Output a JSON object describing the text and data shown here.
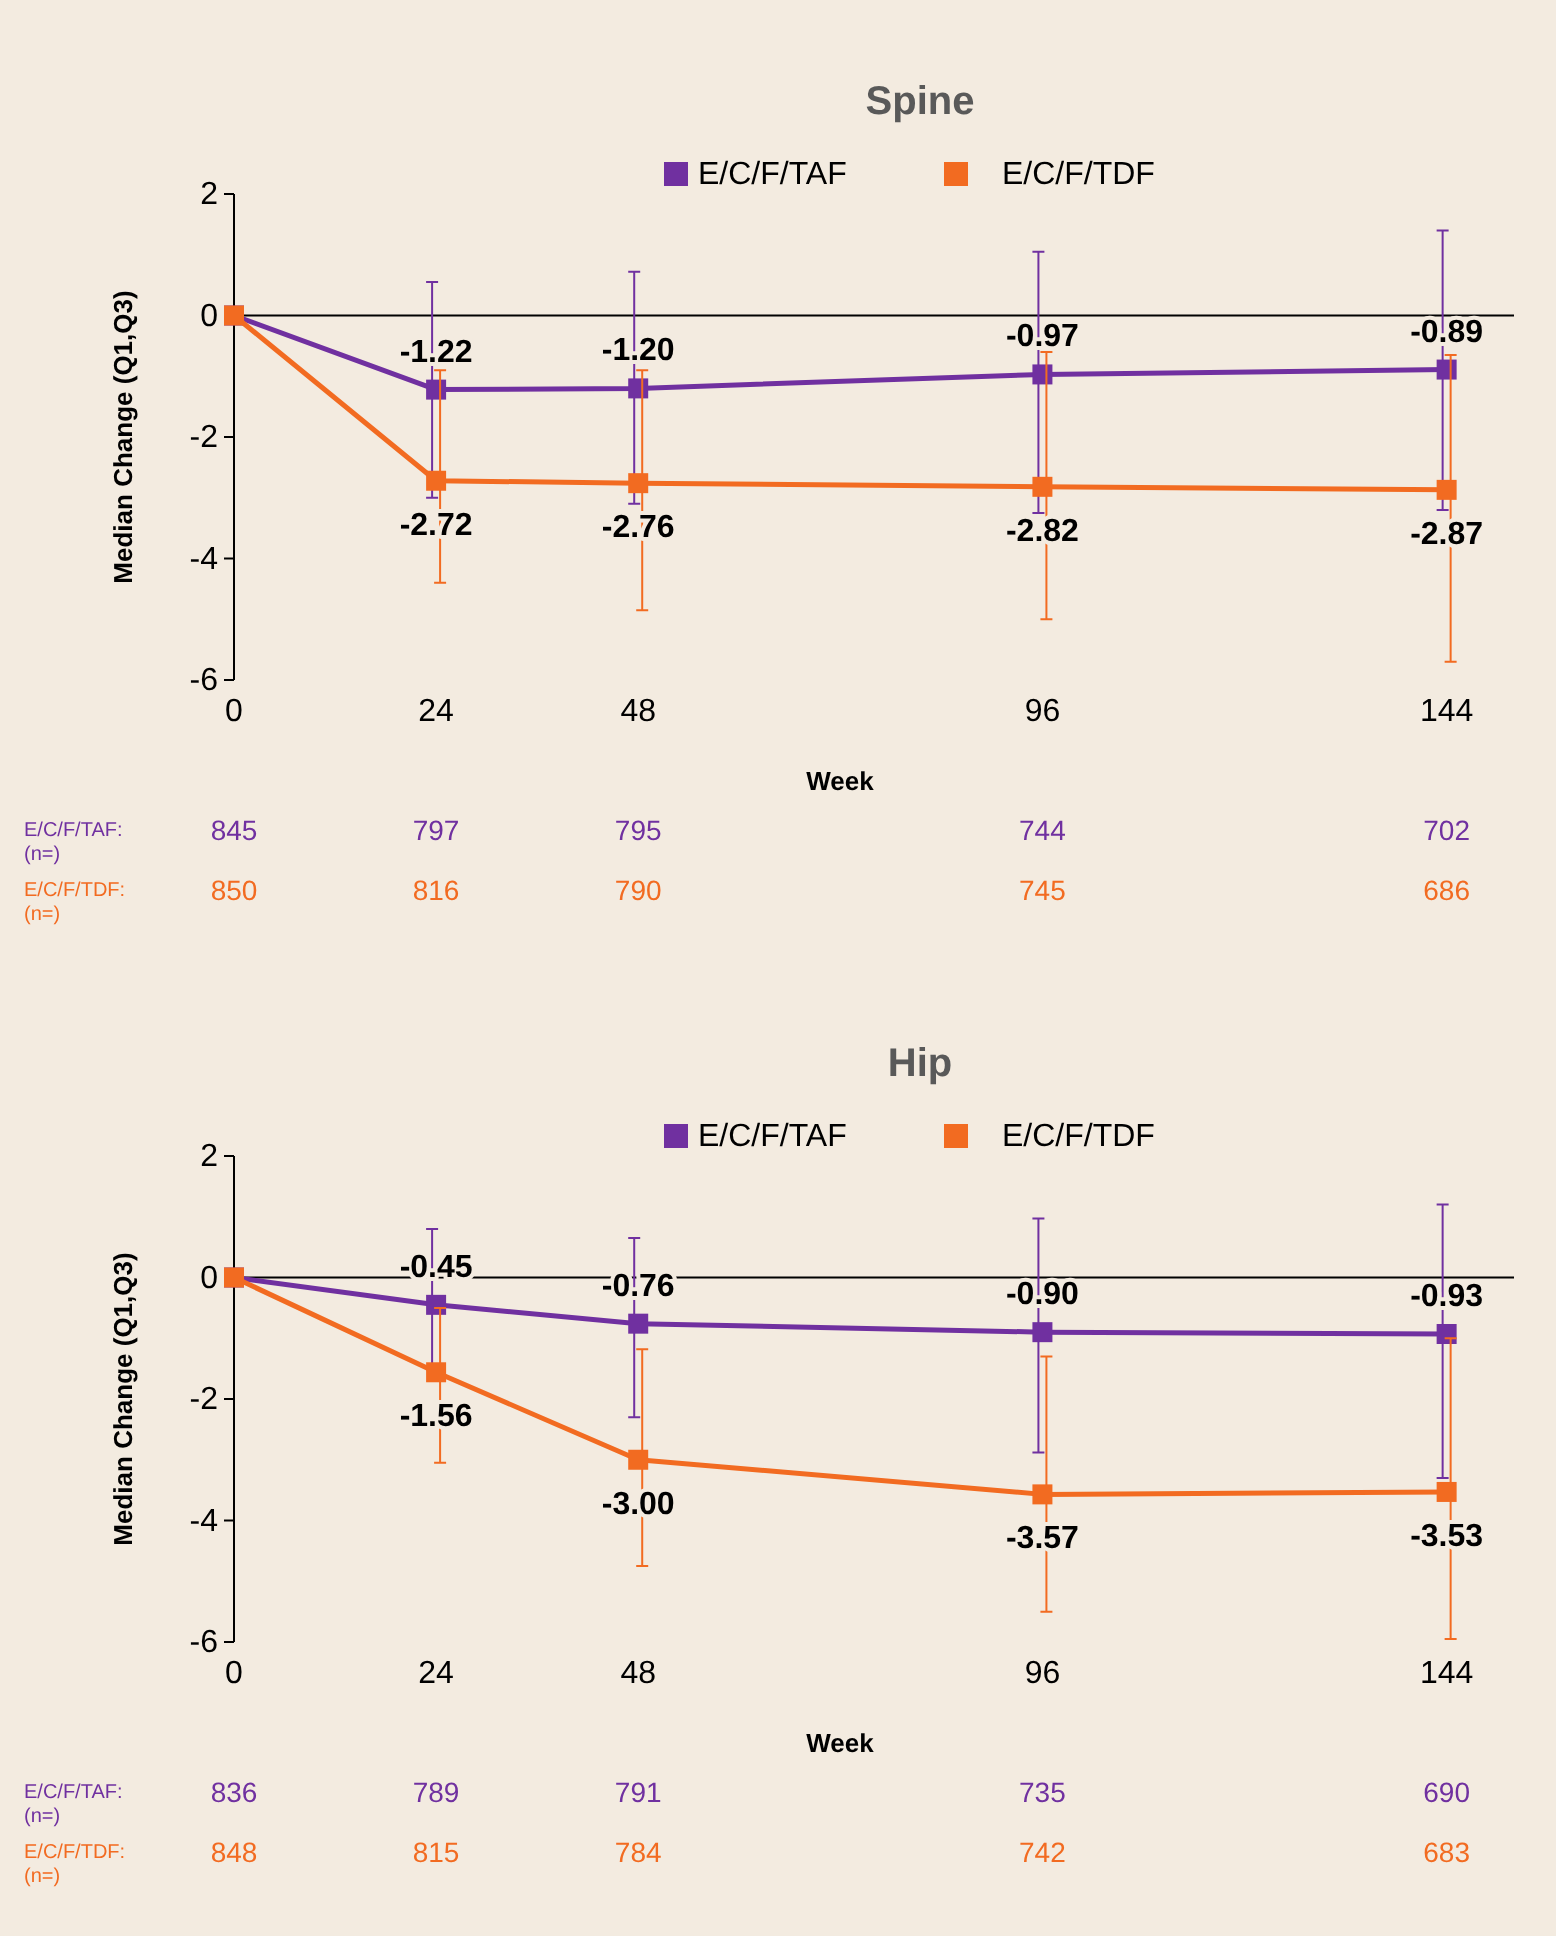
{
  "chart_data": [
    {
      "type": "line",
      "title": "Spine",
      "xlabel": "Week",
      "ylabel": "Median Change (Q1,Q3)",
      "x": [
        0,
        24,
        48,
        96,
        144
      ],
      "xlim": [
        0,
        152
      ],
      "xticks": [
        0,
        24,
        48,
        96,
        144
      ],
      "ylim": [
        -6,
        2
      ],
      "yticks": [
        -6,
        -4,
        -2,
        0,
        2
      ],
      "grid": false,
      "legend": "top",
      "marker": "square",
      "line_style": "solid",
      "ref_lines": [
        {
          "axis": "y",
          "value": 0,
          "color": "#000000"
        }
      ],
      "series": [
        {
          "name": "E/C/F/TAF",
          "color": "#7030a0",
          "values": [
            0,
            -1.22,
            -1.2,
            -0.97,
            -0.89
          ],
          "value_labels": [
            null,
            "-1.22",
            "-1.20",
            "-0.97",
            "-0.89"
          ],
          "errors": [
            null,
            [
              -3.0,
              0.55
            ],
            [
              -3.1,
              0.72
            ],
            [
              -3.25,
              1.05
            ],
            [
              -3.2,
              1.4
            ]
          ]
        },
        {
          "name": "E/C/F/TDF",
          "color": "#f26b21",
          "values": [
            0,
            -2.72,
            -2.76,
            -2.82,
            -2.87
          ],
          "value_labels": [
            null,
            "-2.72",
            "-2.76",
            "-2.82",
            "-2.87"
          ],
          "errors": [
            null,
            [
              -4.4,
              -0.9
            ],
            [
              -4.85,
              -0.9
            ],
            [
              -5.0,
              -0.6
            ],
            [
              -5.7,
              -0.65
            ]
          ]
        }
      ],
      "annotations": [
        "E/C/F/TAF:\n(n=)",
        "845",
        "797",
        "795",
        "744",
        "702",
        "E/C/F/TDF:\n(n=)",
        "850",
        "816",
        "790",
        "745",
        "686"
      ]
    },
    {
      "type": "line",
      "title": "Hip",
      "xlabel": "Week",
      "ylabel": "Median Change (Q1,Q3)",
      "x": [
        0,
        24,
        48,
        96,
        144
      ],
      "xlim": [
        0,
        152
      ],
      "xticks": [
        0,
        24,
        48,
        96,
        144
      ],
      "ylim": [
        -6,
        2
      ],
      "yticks": [
        -6,
        -4,
        -2,
        0,
        2
      ],
      "grid": false,
      "legend": "top",
      "marker": "square",
      "line_style": "solid",
      "ref_lines": [
        {
          "axis": "y",
          "value": 0,
          "color": "#000000"
        }
      ],
      "series": [
        {
          "name": "E/C/F/TAF",
          "color": "#7030a0",
          "values": [
            0,
            -0.45,
            -0.76,
            -0.9,
            -0.93
          ],
          "value_labels": [
            null,
            "-0.45",
            "-0.76",
            "-0.90",
            "-0.93"
          ],
          "errors": [
            null,
            [
              -1.5,
              0.8
            ],
            [
              -2.3,
              0.65
            ],
            [
              -2.88,
              0.97
            ],
            [
              -3.3,
              1.2
            ]
          ]
        },
        {
          "name": "E/C/F/TDF",
          "color": "#f26b21",
          "values": [
            0,
            -1.56,
            -3.0,
            -3.57,
            -3.53
          ],
          "value_labels": [
            null,
            "-1.56",
            "-3.00",
            "-3.57",
            "-3.53"
          ],
          "errors": [
            null,
            [
              -3.05,
              -0.5
            ],
            [
              -4.75,
              -1.18
            ],
            [
              -5.5,
              -1.3
            ],
            [
              -5.95,
              -1.0
            ]
          ]
        }
      ],
      "annotations": [
        "E/C/F/TAF:\n(n=)",
        "836",
        "789",
        "791",
        "735",
        "690",
        "E/C/F/TDF:\n(n=)",
        "848",
        "815",
        "784",
        "742",
        "683"
      ]
    }
  ]
}
